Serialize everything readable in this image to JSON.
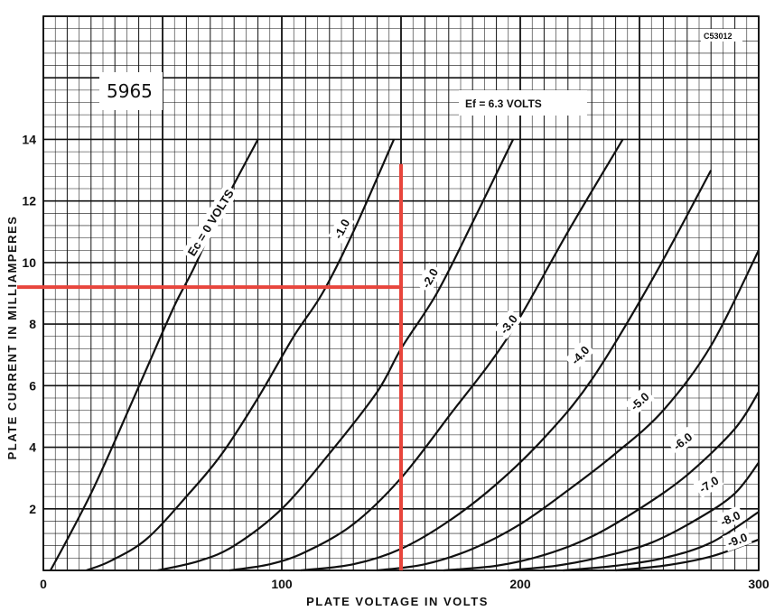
{
  "chart_data": {
    "type": "line",
    "title": "",
    "tube_type": "5965",
    "drawing_code": "C53012",
    "heater_note": "Ef = 6.3 VOLTS",
    "xlabel": "PLATE VOLTAGE IN VOLTS",
    "ylabel": "PLATE CURRENT IN MILLIAMPERES",
    "xlim": [
      0,
      300
    ],
    "ylim": [
      0,
      18
    ],
    "x_ticks": [
      0,
      100,
      200,
      300
    ],
    "y_ticks": [
      2,
      4,
      6,
      8,
      10,
      12,
      14
    ],
    "grid": true,
    "series": [
      {
        "name": "Ec = 0 VOLTS",
        "label_x": 70,
        "label_y": 11.3,
        "label_angle": -58,
        "points": [
          [
            3,
            0
          ],
          [
            10,
            1
          ],
          [
            20,
            2.5
          ],
          [
            30,
            4.2
          ],
          [
            43,
            6.5
          ],
          [
            55,
            8.6
          ],
          [
            63,
            9.8
          ],
          [
            75,
            11.8
          ],
          [
            90,
            14
          ]
        ]
      },
      {
        "name": "-1.0",
        "label_x": 125,
        "label_y": 11.1,
        "label_angle": -62,
        "points": [
          [
            18,
            0
          ],
          [
            28,
            0.3
          ],
          [
            43,
            1
          ],
          [
            60,
            2.4
          ],
          [
            75,
            3.8
          ],
          [
            90,
            5.6
          ],
          [
            105,
            7.6
          ],
          [
            117,
            9
          ],
          [
            130,
            11
          ],
          [
            147,
            14
          ]
        ]
      },
      {
        "name": "-2.0",
        "label_x": 162,
        "label_y": 9.5,
        "label_angle": -60,
        "points": [
          [
            48,
            0
          ],
          [
            65,
            0.3
          ],
          [
            80,
            0.8
          ],
          [
            100,
            2
          ],
          [
            120,
            3.8
          ],
          [
            140,
            5.8
          ],
          [
            150,
            7.2
          ],
          [
            165,
            9
          ],
          [
            180,
            11.3
          ],
          [
            197,
            14
          ]
        ]
      },
      {
        "name": "-3.0",
        "label_x": 195,
        "label_y": 8.0,
        "label_angle": -52,
        "points": [
          [
            78,
            0
          ],
          [
            95,
            0.2
          ],
          [
            110,
            0.6
          ],
          [
            130,
            1.5
          ],
          [
            150,
            3
          ],
          [
            170,
            5
          ],
          [
            195,
            7.6
          ],
          [
            220,
            11
          ],
          [
            243,
            14
          ]
        ]
      },
      {
        "name": "-4.0",
        "label_x": 225,
        "label_y": 7.0,
        "label_angle": -47,
        "points": [
          [
            108,
            0
          ],
          [
            130,
            0.2
          ],
          [
            150,
            0.7
          ],
          [
            170,
            1.6
          ],
          [
            190,
            2.8
          ],
          [
            210,
            4.3
          ],
          [
            230,
            6.2
          ],
          [
            255,
            9.4
          ],
          [
            280,
            13
          ]
        ]
      },
      {
        "name": "-5.0",
        "label_x": 250,
        "label_y": 5.5,
        "label_angle": -42,
        "points": [
          [
            140,
            0
          ],
          [
            160,
            0.2
          ],
          [
            180,
            0.7
          ],
          [
            200,
            1.5
          ],
          [
            220,
            2.6
          ],
          [
            240,
            3.8
          ],
          [
            260,
            5.2
          ],
          [
            280,
            7.3
          ],
          [
            300,
            10.4
          ]
        ]
      },
      {
        "name": "-6.0",
        "label_x": 268,
        "label_y": 4.2,
        "label_angle": -38,
        "points": [
          [
            168,
            0
          ],
          [
            190,
            0.15
          ],
          [
            210,
            0.5
          ],
          [
            230,
            1.1
          ],
          [
            250,
            2
          ],
          [
            270,
            3.1
          ],
          [
            290,
            4.6
          ],
          [
            300,
            5.8
          ]
        ]
      },
      {
        "name": "-7.0",
        "label_x": 279,
        "label_y": 2.8,
        "label_angle": -32,
        "points": [
          [
            195,
            0
          ],
          [
            215,
            0.15
          ],
          [
            235,
            0.45
          ],
          [
            255,
            0.9
          ],
          [
            275,
            1.7
          ],
          [
            290,
            2.5
          ],
          [
            300,
            3.5
          ]
        ]
      },
      {
        "name": "-8.0",
        "label_x": 288,
        "label_y": 1.7,
        "label_angle": -24,
        "points": [
          [
            218,
            0
          ],
          [
            240,
            0.15
          ],
          [
            260,
            0.4
          ],
          [
            280,
            0.9
          ],
          [
            300,
            1.9
          ]
        ]
      },
      {
        "name": "-9.0",
        "label_x": 291,
        "label_y": 1.0,
        "label_angle": -20,
        "points": [
          [
            240,
            0
          ],
          [
            260,
            0.15
          ],
          [
            280,
            0.45
          ],
          [
            300,
            1.0
          ]
        ]
      }
    ],
    "annotations": [
      {
        "type": "vertical-line",
        "x": 150,
        "y_from": 0,
        "y_to": 13.2,
        "color": "#e8453c"
      },
      {
        "type": "horizontal-line",
        "y": 9.2,
        "x_from": -11,
        "x_to": 150,
        "color": "#e8453c"
      }
    ]
  }
}
